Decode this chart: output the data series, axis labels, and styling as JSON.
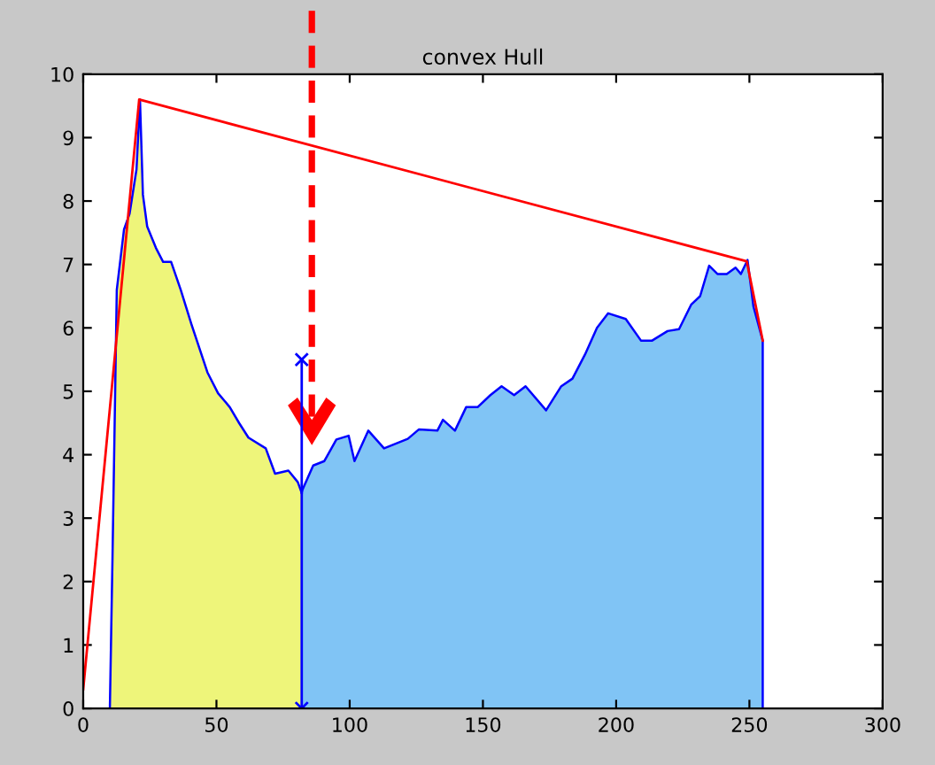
{
  "chart_data": {
    "type": "area",
    "title": "convex Hull",
    "series": [
      {
        "color": "#eef57a",
        "x": [
          10,
          10.5,
          11,
          12.6,
          15.3,
          17.4,
          20,
          21.3,
          22.4,
          24,
          27.3,
          30,
          33,
          36.6,
          40.6,
          46.6,
          50.6,
          55,
          58.5,
          62,
          68.5,
          72,
          77,
          80.5,
          82
        ],
        "values": [
          0,
          1.2,
          2.4,
          6.6,
          7.55,
          7.8,
          8.5,
          9.6,
          8.1,
          7.6,
          7.26,
          7.04,
          7.04,
          6.6,
          6.06,
          5.3,
          4.97,
          4.75,
          4.5,
          4.27,
          4.1,
          3.7,
          3.75,
          3.57,
          3.4
        ]
      },
      {
        "color": "#80c4f5",
        "x": [
          82,
          82.3,
          86.3,
          90.5,
          95,
          99.6,
          101.8,
          107,
          112.9,
          121.8,
          126,
          132.9,
          135,
          139.5,
          143.7,
          148,
          152.8,
          157,
          161.7,
          166,
          173.7,
          179.4,
          183.6,
          188.3,
          192.8,
          197,
          203.6,
          209.3,
          213.5,
          219.3,
          223.6,
          228.2,
          231.5,
          234.9,
          238,
          241.5,
          244.8,
          246.8,
          249.3,
          251.5,
          254.2,
          255,
          255
        ],
        "values": [
          3.4,
          3.45,
          3.83,
          3.9,
          4.24,
          4.3,
          3.9,
          4.38,
          4.1,
          4.25,
          4.4,
          4.38,
          4.55,
          4.38,
          4.75,
          4.75,
          4.94,
          5.08,
          4.94,
          5.08,
          4.7,
          5.08,
          5.2,
          5.58,
          6.0,
          6.23,
          6.14,
          5.8,
          5.8,
          5.95,
          5.98,
          6.37,
          6.5,
          6.98,
          6.85,
          6.85,
          6.95,
          6.85,
          7.07,
          6.34,
          5.92,
          5.8,
          0
        ]
      },
      {
        "type": "line",
        "color": "#0000ff",
        "marker": "cross",
        "x": [
          82,
          82
        ],
        "values": [
          0,
          5.5
        ]
      },
      {
        "type": "line",
        "color": "#ff0000",
        "x": [
          0,
          21,
          249,
          255
        ],
        "values": [
          0.3,
          9.6,
          7.05,
          5.8
        ]
      }
    ],
    "xlim": [
      0,
      300
    ],
    "ylim": [
      0,
      10
    ],
    "xticks": [
      0,
      50,
      100,
      150,
      200,
      250,
      300
    ],
    "yticks": [
      0,
      1,
      2,
      3,
      4,
      5,
      6,
      7,
      8,
      9,
      10
    ],
    "grid": false
  }
}
